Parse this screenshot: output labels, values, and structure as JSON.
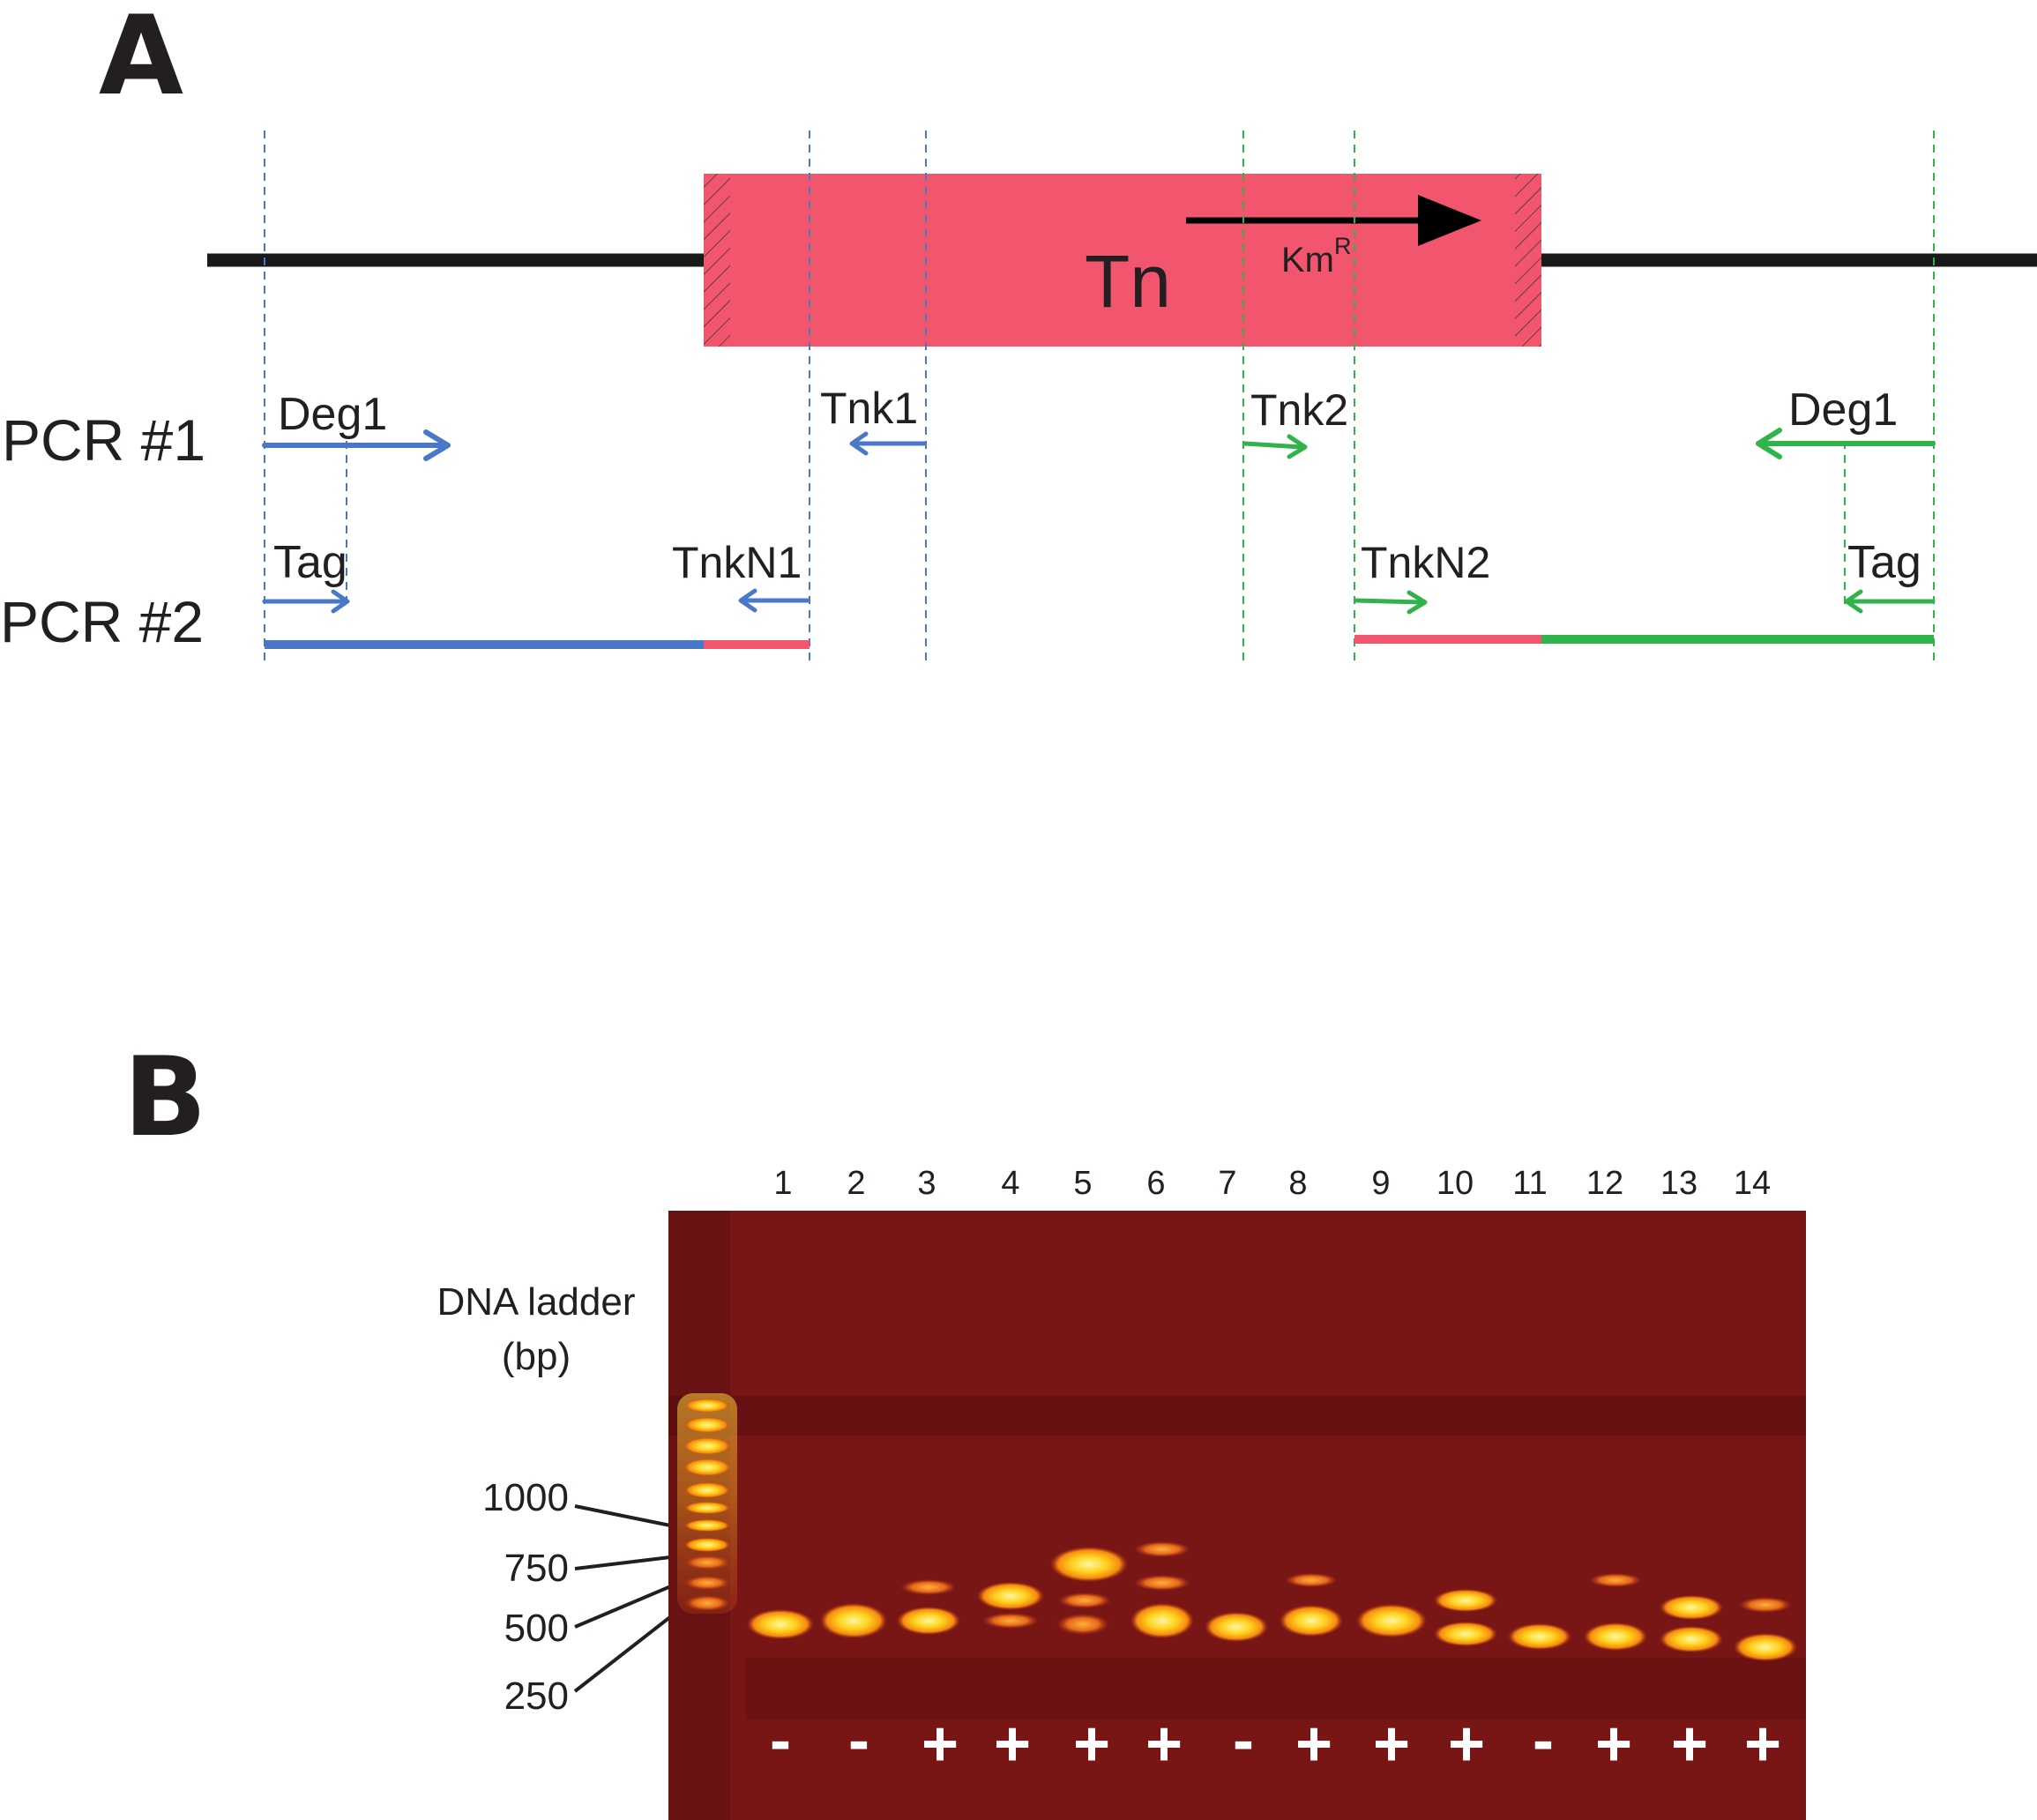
{
  "panel_a": {
    "label": "A",
    "transposon_label": "Tn",
    "resistance_label": "Km",
    "resistance_superscript": "R",
    "rows": [
      "PCR #1",
      "PCR #2"
    ],
    "primers": {
      "left_deg1": "Deg1",
      "tnk1": "Tnk1",
      "tnk2": "Tnk2",
      "right_deg1": "Deg1",
      "left_tag": "Tag",
      "tnkn1": "TnkN1",
      "tnkn2": "TnkN2",
      "right_tag": "Tag"
    },
    "colors": {
      "transposon": "#f2566e",
      "left_side": "#4a78c8",
      "right_side": "#2fb34a",
      "backbone": "#1a1a1a"
    }
  },
  "panel_b": {
    "label": "B",
    "ladder_title": "DNA ladder",
    "ladder_unit": "(bp)",
    "ladder_sizes": [
      "1000",
      "750",
      "500",
      "250"
    ],
    "lane_numbers": [
      "1",
      "2",
      "3",
      "4",
      "5",
      "6",
      "7",
      "8",
      "9",
      "10",
      "11",
      "12",
      "13",
      "14"
    ],
    "lane_results": [
      "-",
      "-",
      "+",
      "+",
      "+",
      "+",
      "-",
      "+",
      "+",
      "+",
      "-",
      "+",
      "+",
      "+"
    ],
    "gel_color": "#781616"
  }
}
